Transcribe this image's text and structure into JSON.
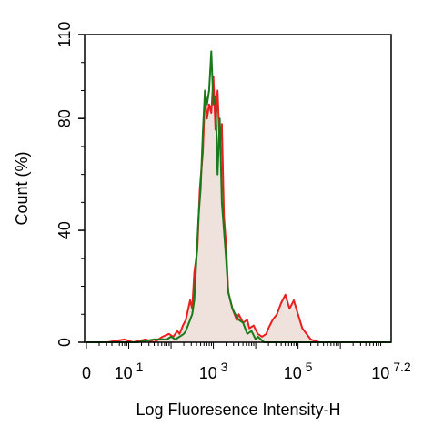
{
  "chart_data": {
    "type": "area",
    "xlabel": "Log Fluoresence Intensity-H",
    "ylabel": "Count  (%)",
    "ylim": [
      0,
      110
    ],
    "xlim": [
      0,
      7.2
    ],
    "yticks": [
      {
        "value": 0,
        "label": "0"
      },
      {
        "value": 40,
        "label": "40"
      },
      {
        "value": 80,
        "label": "80"
      },
      {
        "value": 110,
        "label": "110"
      }
    ],
    "xticks": [
      {
        "value": 0,
        "base": "0",
        "exp": ""
      },
      {
        "value": 1,
        "base": "10",
        "exp": "1"
      },
      {
        "value": 3,
        "base": "10",
        "exp": "3"
      },
      {
        "value": 5,
        "base": "10",
        "exp": "5"
      },
      {
        "value": 7.2,
        "base": "10",
        "exp": "7.2"
      }
    ],
    "grid": false,
    "legend": "none",
    "series": [
      {
        "color": "#e8201e",
        "fill": "#efe2dd",
        "x": [
          0,
          0.5,
          0.9,
          1.1,
          1.4,
          1.6,
          1.8,
          1.95,
          2.05,
          2.15,
          2.2,
          2.28,
          2.35,
          2.45,
          2.5,
          2.55,
          2.62,
          2.68,
          2.75,
          2.8,
          2.85,
          2.9,
          2.95,
          3.0,
          3.05,
          3.1,
          3.15,
          3.2,
          3.25,
          3.3,
          3.35,
          3.45,
          3.55,
          3.6,
          3.7,
          3.8,
          3.85,
          3.95,
          4.05,
          4.15,
          4.25,
          4.3,
          4.4,
          4.5,
          4.6,
          4.7,
          4.8,
          4.9,
          5.0,
          5.1,
          5.3,
          5.5,
          6.0,
          7.2
        ],
        "y": [
          0,
          0,
          1,
          0,
          1,
          0,
          2,
          3,
          2,
          4,
          3,
          6,
          8,
          15,
          12,
          25,
          33,
          55,
          68,
          88,
          80,
          85,
          82,
          95,
          76,
          90,
          70,
          78,
          45,
          35,
          18,
          12,
          8,
          10,
          7,
          8,
          5,
          6,
          3,
          2,
          3,
          5,
          8,
          10,
          14,
          17,
          12,
          15,
          10,
          5,
          1,
          0,
          0,
          0
        ]
      },
      {
        "color": "#1a7a1a",
        "x": [
          0,
          1.2,
          1.6,
          1.9,
          2.0,
          2.1,
          2.2,
          2.3,
          2.35,
          2.45,
          2.5,
          2.55,
          2.6,
          2.65,
          2.7,
          2.75,
          2.8,
          2.85,
          2.9,
          2.95,
          3.0,
          3.05,
          3.1,
          3.15,
          3.2,
          3.25,
          3.3,
          3.35,
          3.45,
          3.55,
          3.6,
          3.7,
          3.8,
          3.9,
          4.0,
          4.05,
          4.2,
          7.2
        ],
        "y": [
          0,
          0,
          1,
          1,
          2,
          1,
          2,
          3,
          4,
          8,
          10,
          15,
          30,
          45,
          55,
          75,
          90,
          85,
          90,
          104,
          85,
          88,
          60,
          80,
          50,
          40,
          30,
          18,
          12,
          9,
          8,
          7,
          3,
          4,
          1,
          2,
          0,
          0
        ]
      }
    ]
  }
}
